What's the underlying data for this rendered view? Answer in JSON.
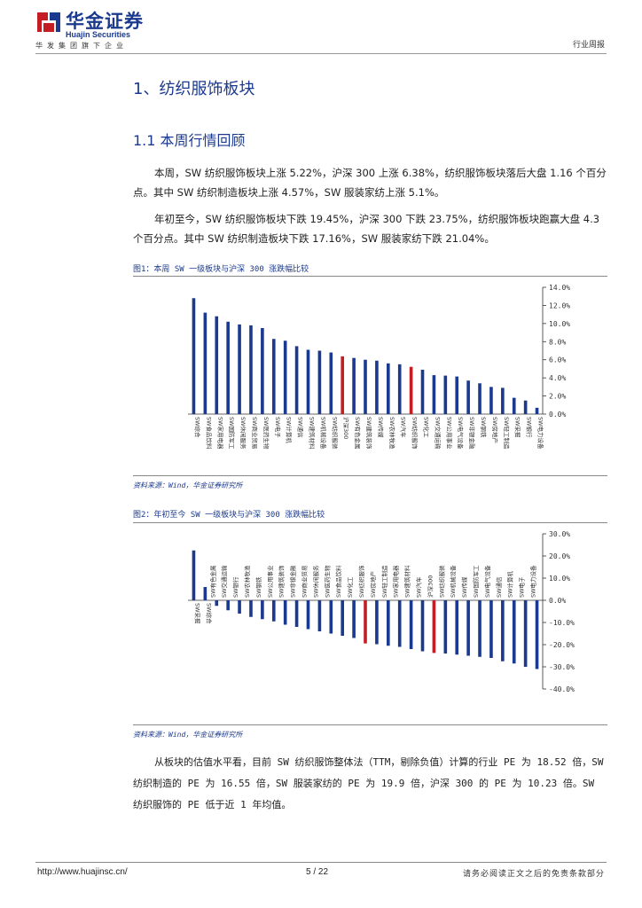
{
  "header": {
    "brand_cn": "华金证券",
    "brand_en": "Huajin Securities",
    "brand_sub": "华发集团旗下企业",
    "report_type": "行业周报",
    "brand_color": "#1b3a8f",
    "logo_icon": "huajin-logo-icon"
  },
  "section": {
    "h1": "1、纺织服饰板块",
    "h2": "1.1 本周行情回顾"
  },
  "paragraphs": {
    "p1": "本周，SW 纺织服饰板块上涨 5.22%，沪深 300 上涨 6.38%，纺织服饰板块落后大盘 1.16 个百分点。其中 SW 纺织制造板块上涨 4.57%，SW 服装家纺上涨 5.1%。",
    "p2": "年初至今，SW 纺织服饰板块下跌 19.45%，沪深 300 下跌 23.75%，纺织服饰板块跑赢大盘 4.3 个百分点。其中 SW 纺织制造板块下跌 17.16%，SW 服装家纺下跌 21.04%。",
    "p3": "从板块的估值水平看，目前 SW 纺织服饰整体法（TTM，剔除负值）计算的行业 PE 为 18.52 倍，SW 纺织制造的 PE 为 16.55 倍，SW 服装家纺的 PE 为 19.9 倍，沪深 300 的 PE 为 10.23 倍。SW 纺织服饰的 PE 低于近 1 年均值。"
  },
  "figures": {
    "fig1_title": "图1：本周 SW 一级板块与沪深 300 涨跌幅比较",
    "fig1_source": "资料来源：Wind，华金证券研究所",
    "fig2_title": "图2：年初至今 SW 一级板块与沪深 300 涨跌幅比较",
    "fig2_source": "资料来源：Wind，华金证券研究所"
  },
  "chart_data": [
    {
      "type": "bar",
      "title": "图1：本周 SW 一级板块与沪深 300 涨跌幅比较",
      "ylim": [
        0,
        14
      ],
      "yticks": [
        "14.0%",
        "12.0%",
        "10.0%",
        "8.0%",
        "6.0%",
        "4.0%",
        "2.0%",
        "0.0%"
      ],
      "grid": false,
      "colors": {
        "default": "#1b3a8f",
        "highlight": "#c41e24"
      },
      "categories": [
        "SW综合",
        "SW食品饮料",
        "SW家用电器",
        "SW国防军工",
        "SW休闲服务",
        "SW商业贸易",
        "SW医药生物",
        "SW电子",
        "SW计算机",
        "SW通信",
        "SW建筑材料",
        "SW机械设备",
        "SW纺织服装",
        "沪深300",
        "SW有色金属",
        "SW建筑装饰",
        "SW传媒",
        "SW农林牧渔",
        "SW汽车",
        "SW纺织服饰",
        "SW化工",
        "SW交通运输",
        "SW公用事业",
        "SW电气设备",
        "SW非银金融",
        "SW钢铁",
        "SW房地产",
        "SW轻工制造",
        "SW采掘",
        "SW银行",
        "SW电力设备"
      ],
      "values": [
        12.8,
        11.2,
        10.8,
        10.2,
        9.9,
        9.8,
        9.5,
        8.3,
        8.1,
        7.5,
        7.1,
        7.0,
        6.8,
        6.38,
        6.2,
        6.0,
        5.9,
        5.6,
        5.5,
        5.22,
        4.9,
        4.3,
        4.25,
        4.15,
        3.7,
        3.4,
        3.0,
        2.9,
        1.8,
        1.5,
        0.7
      ],
      "highlight": [
        "沪深300",
        "SW纺织服饰"
      ]
    },
    {
      "type": "bar",
      "title": "图2：年初至今 SW 一级板块与沪深 300 涨跌幅比较",
      "ylim": [
        -40,
        30
      ],
      "yticks": [
        "30.0%",
        "20.0%",
        "10.0%",
        "0.0%",
        "-10.0%",
        "-20.0%",
        "-30.0%",
        "-40.0%"
      ],
      "grid": false,
      "colors": {
        "default": "#1b3a8f",
        "highlight": "#c41e24"
      },
      "categories": [
        "SW采掘",
        "SW综合",
        "SW有色金属",
        "SW交通运输",
        "SW银行",
        "SW农林牧渔",
        "SW钢铁",
        "SW公用事业",
        "SW建筑装饰",
        "SW非银金融",
        "SW商业贸易",
        "SW休闲服务",
        "SW医药生物",
        "SW食品饮料",
        "SW化工",
        "SW纺织服饰",
        "SW房地产",
        "SW轻工制造",
        "SW家用电器",
        "SW建筑材料",
        "SW汽车",
        "沪深300",
        "SW纺织服装",
        "SW机械设备",
        "SW传媒",
        "SW国防军工",
        "SW电气设备",
        "SW通信",
        "SW计算机",
        "SW电子",
        "SW电力设备"
      ],
      "values": [
        22.5,
        6.0,
        -2.5,
        -4.5,
        -6.0,
        -7.5,
        -8.5,
        -9.5,
        -11.0,
        -12.0,
        -13.0,
        -14.0,
        -15.0,
        -16.0,
        -17.0,
        -19.45,
        -19.8,
        -20.5,
        -21.0,
        -22.0,
        -23.0,
        -23.75,
        -24.0,
        -24.5,
        -25.0,
        -25.5,
        -26.0,
        -27.5,
        -28.5,
        -30.0,
        -31.0
      ],
      "highlight": [
        "SW纺织服饰",
        "沪深300"
      ]
    }
  ],
  "footer": {
    "url": "http://www.huajinsc.cn/",
    "page": "5 / 22",
    "disclaimer": "请务必阅读正文之后的免责条款部分"
  }
}
